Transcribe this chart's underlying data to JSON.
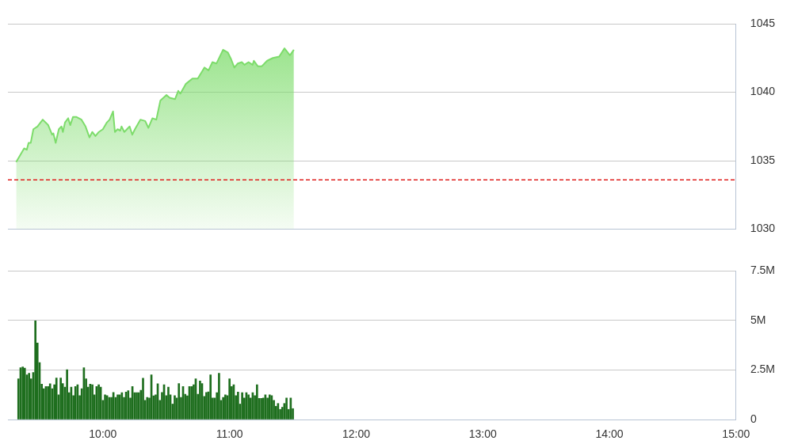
{
  "chart_data": [
    {
      "type": "area",
      "color": "#7ddc6b",
      "xlim": [
        9.25,
        15
      ],
      "ylim": [
        1030,
        1045
      ],
      "yticks": [
        1030,
        1035,
        1040,
        1045
      ],
      "grid": "y",
      "tick_labels": "y",
      "x": [
        9.315,
        9.346,
        9.378,
        9.399,
        9.413,
        9.43,
        9.451,
        9.483,
        9.525,
        9.568,
        9.599,
        9.609,
        9.627,
        9.652,
        9.673,
        9.684,
        9.701,
        9.726,
        9.742,
        9.764,
        9.789,
        9.831,
        9.863,
        9.894,
        9.916,
        9.941,
        9.968,
        10.0,
        10.032,
        10.053,
        10.08,
        10.095,
        10.116,
        10.137,
        10.147,
        10.169,
        10.211,
        10.232,
        10.253,
        10.296,
        10.334,
        10.359,
        10.391,
        10.422,
        10.454,
        10.502,
        10.527,
        10.57,
        10.595,
        10.612,
        10.654,
        10.707,
        10.749,
        10.802,
        10.834,
        10.865,
        10.897,
        10.949,
        10.987,
        11.013,
        11.038,
        11.065,
        11.097,
        11.118,
        11.15,
        11.182,
        11.192,
        11.223,
        11.255,
        11.297,
        11.342,
        11.392,
        11.434,
        11.477,
        11.508
      ],
      "values": [
        1034.9,
        1035.4,
        1035.9,
        1035.8,
        1036.3,
        1036.3,
        1037.3,
        1037.5,
        1038.0,
        1037.6,
        1036.9,
        1037.0,
        1036.3,
        1037.3,
        1037.5,
        1037.1,
        1037.8,
        1038.1,
        1037.6,
        1038.2,
        1038.2,
        1038.0,
        1037.5,
        1036.7,
        1037.1,
        1036.8,
        1037.1,
        1037.3,
        1037.8,
        1038.0,
        1038.6,
        1037.1,
        1037.3,
        1037.2,
        1037.5,
        1037.1,
        1037.5,
        1036.9,
        1037.3,
        1038.0,
        1037.9,
        1037.4,
        1038.1,
        1038.0,
        1039.4,
        1039.8,
        1039.6,
        1039.5,
        1040.1,
        1039.9,
        1040.6,
        1041.0,
        1041.0,
        1041.8,
        1041.6,
        1042.2,
        1042.1,
        1043.1,
        1042.9,
        1042.4,
        1041.8,
        1042.1,
        1042.2,
        1042.0,
        1042.2,
        1042.0,
        1042.3,
        1041.9,
        1041.9,
        1042.3,
        1042.5,
        1042.6,
        1043.2,
        1042.7,
        1043.1
      ],
      "ref_lines": [
        {
          "axis": "y",
          "value": 1033.6,
          "color": "#e0201f",
          "line_style": "dashed"
        }
      ]
    },
    {
      "type": "bar",
      "color": "#1e6e1e",
      "xlim": [
        9.25,
        15
      ],
      "ylim": [
        0,
        7.5
      ],
      "grid": "y",
      "xticks": [
        {
          "value": 10,
          "label": "10:00"
        },
        {
          "value": 11,
          "label": "11:00"
        },
        {
          "value": 12,
          "label": "12:00"
        },
        {
          "value": 13,
          "label": "13:00"
        },
        {
          "value": 14,
          "label": "14:00"
        },
        {
          "value": 15,
          "label": "15:00"
        }
      ],
      "yticks": [
        0,
        {
          "value": 2.5,
          "label": "2.5M"
        },
        {
          "value": 5,
          "label": "5M"
        },
        {
          "value": 7.5,
          "label": "7.5M"
        }
      ],
      "x": [
        9.333,
        9.35,
        9.367,
        9.383,
        9.4,
        9.417,
        9.433,
        9.45,
        9.467,
        9.483,
        9.5,
        9.517,
        9.533,
        9.55,
        9.567,
        9.583,
        9.6,
        9.617,
        9.633,
        9.65,
        9.667,
        9.683,
        9.7,
        9.717,
        9.733,
        9.75,
        9.767,
        9.783,
        9.8,
        9.817,
        9.833,
        9.85,
        9.867,
        9.883,
        9.9,
        9.917,
        9.933,
        9.95,
        9.967,
        9.983,
        10.0,
        10.017,
        10.033,
        10.05,
        10.067,
        10.083,
        10.1,
        10.117,
        10.133,
        10.15,
        10.167,
        10.183,
        10.2,
        10.217,
        10.233,
        10.25,
        10.267,
        10.283,
        10.3,
        10.317,
        10.333,
        10.35,
        10.367,
        10.383,
        10.4,
        10.417,
        10.433,
        10.45,
        10.467,
        10.483,
        10.5,
        10.517,
        10.533,
        10.55,
        10.567,
        10.583,
        10.6,
        10.617,
        10.633,
        10.65,
        10.667,
        10.683,
        10.7,
        10.717,
        10.733,
        10.75,
        10.767,
        10.783,
        10.8,
        10.817,
        10.833,
        10.85,
        10.867,
        10.883,
        10.9,
        10.917,
        10.933,
        10.95,
        10.967,
        10.983,
        11.0,
        11.017,
        11.033,
        11.05,
        11.067,
        11.083,
        11.1,
        11.117,
        11.133,
        11.15,
        11.167,
        11.183,
        11.2,
        11.217,
        11.233,
        11.25,
        11.267,
        11.283,
        11.3,
        11.317,
        11.333,
        11.35,
        11.367,
        11.383,
        11.4,
        11.417,
        11.433,
        11.45,
        11.467,
        11.483,
        11.5
      ],
      "values": [
        2.06,
        2.62,
        2.66,
        2.6,
        2.26,
        2.34,
        2.06,
        2.38,
        4.98,
        3.86,
        2.88,
        1.79,
        1.56,
        1.67,
        1.67,
        1.81,
        1.56,
        1.76,
        2.1,
        1.25,
        2.1,
        1.82,
        1.64,
        2.52,
        1.36,
        1.64,
        1.21,
        1.67,
        1.76,
        1.21,
        1.56,
        2.62,
        2.06,
        1.64,
        1.79,
        1.76,
        1.25,
        1.67,
        1.76,
        1.64,
        0.97,
        1.25,
        1.21,
        1.12,
        1.12,
        1.37,
        1.12,
        1.25,
        1.25,
        1.36,
        1.12,
        1.39,
        1.46,
        1.09,
        1.67,
        1.36,
        1.36,
        1.36,
        1.48,
        2.09,
        0.97,
        1.12,
        1.09,
        2.26,
        1.2,
        1.25,
        1.81,
        0.97,
        1.37,
        1.76,
        1.21,
        1.64,
        1.25,
        0.78,
        1.21,
        1.09,
        1.82,
        1.12,
        1.67,
        1.28,
        1.2,
        1.67,
        1.67,
        1.76,
        2.06,
        1.28,
        1.95,
        1.82,
        1.17,
        1.37,
        1.4,
        2.26,
        1.09,
        1.09,
        1.36,
        2.34,
        0.97,
        1.12,
        1.25,
        1.21,
        2.06,
        1.67,
        1.76,
        1.21,
        1.39,
        0.78,
        1.36,
        1.09,
        1.36,
        1.25,
        1.09,
        1.36,
        1.21,
        1.76,
        1.07,
        1.07,
        1.09,
        1.25,
        1.09,
        1.25,
        1.21,
        0.97,
        0.67,
        0.81,
        0.51,
        0.62,
        0.81,
        1.09,
        0.51,
        1.09,
        0.55
      ]
    }
  ]
}
